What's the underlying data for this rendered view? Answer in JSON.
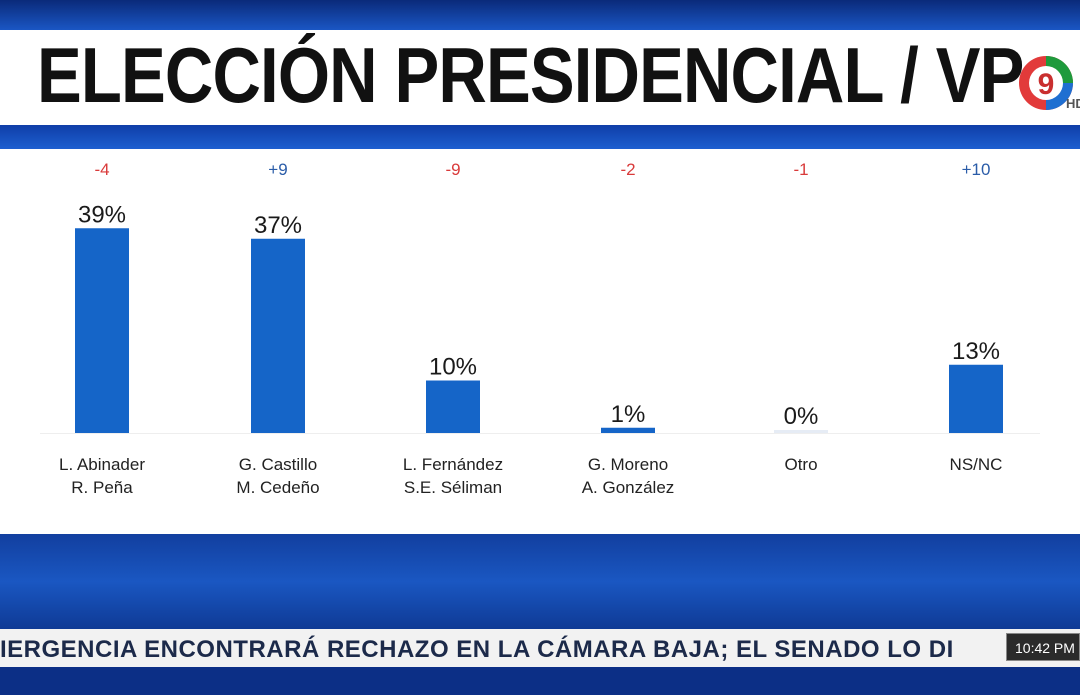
{
  "title": "ELECCIÓN PRESIDENCIAL / VP",
  "logo": {
    "name": "channel-9-logo",
    "text": "9",
    "hd": "HD"
  },
  "chart_data": {
    "type": "bar",
    "categories": [
      [
        "L. Abinader",
        "R. Peña"
      ],
      [
        "G. Castillo",
        "M. Cedeño"
      ],
      [
        "L. Fernández",
        "S.E. Séliman"
      ],
      [
        "G. Moreno",
        "A. González"
      ],
      [
        "Otro"
      ],
      [
        "NS/NC"
      ]
    ],
    "values": [
      39,
      37,
      10,
      1,
      0,
      13
    ],
    "value_labels": [
      "39%",
      "37%",
      "10%",
      "1%",
      "0%",
      "13%"
    ],
    "changes": [
      "-4",
      "+9",
      "-9",
      "-2",
      "-1",
      "+10"
    ],
    "colors": {
      "bar": "#1565c8",
      "negative": "#d93a3a",
      "positive": "#2a5ca8"
    },
    "ylim": [
      0,
      40
    ],
    "grid": false,
    "legend": "none"
  },
  "ticker": {
    "text": "IERGENCIA ENCONTRARÁ RECHAZO EN LA CÁMARA BAJA; EL SENADO LO DI",
    "time": "10:42 PM"
  }
}
